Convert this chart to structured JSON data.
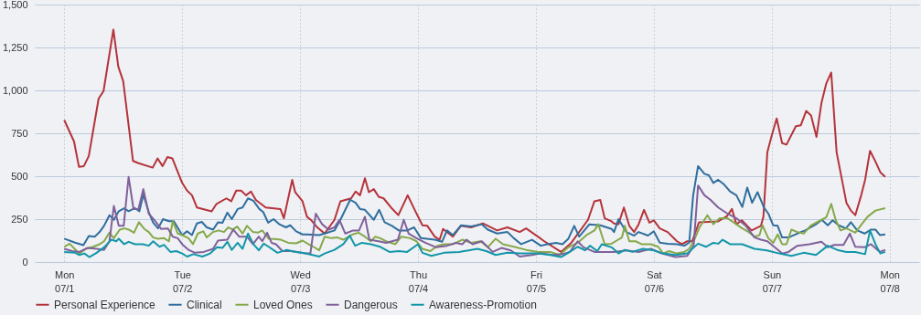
{
  "chart_data": {
    "type": "line",
    "xlim": [
      "--06-30T18:00",
      "--07-08T06:00"
    ],
    "ylim": [
      0,
      1500
    ],
    "xticks": [
      {
        "value": "--07-01",
        "label": "Mon\n07/1"
      },
      {
        "value": "--07-02",
        "label": "Tue\n07/2"
      },
      {
        "value": "--07-03",
        "label": "Wed\n07/3"
      },
      {
        "value": "--07-04",
        "label": "Thu\n07/4"
      },
      {
        "value": "--07-05",
        "label": "Fri\n07/5"
      },
      {
        "value": "--07-06",
        "label": "Sat\n07/6"
      },
      {
        "value": "--07-07",
        "label": "Sun\n07/7"
      },
      {
        "value": "--07-08",
        "label": "Mon\n07/8"
      }
    ],
    "yticks": [
      0,
      250,
      500,
      750,
      {
        "value": 1000,
        "label": "1,000"
      },
      {
        "value": 1250,
        "label": "1,250"
      },
      {
        "value": 1500,
        "label": "1,500"
      }
    ],
    "grid": true,
    "legend": "bottom",
    "line_style": "solid",
    "series": [
      {
        "name": "Personal Experience",
        "color": "#b5333b",
        "x": [
          "--07-01T00:00",
          "--07-01T02:00",
          "--07-01T03:00",
          "--07-01T04:00",
          "--07-01T05:00",
          "--07-01T07:00",
          "--07-01T08:00",
          "--07-01T10:00",
          "--07-01T11:00",
          "--07-01T12:00",
          "--07-01T14:00",
          "--07-01T15:00",
          "--07-01T18:00",
          "--07-01T19:00",
          "--07-01T20:00",
          "--07-01T21:00",
          "--07-01T22:00",
          "--07-02T00:00",
          "--07-02T01:00",
          "--07-02T02:00",
          "--07-02T03:00",
          "--07-02T06:00",
          "--07-02T07:00",
          "--07-02T09:00",
          "--07-02T10:00",
          "--07-02T11:00",
          "--07-02T12:00",
          "--07-02T13:00",
          "--07-02T14:00",
          "--07-02T15:00",
          "--07-02T17:00",
          "--07-02T20:00",
          "--07-02T20:42",
          "--07-02T22:24",
          "--07-02T23:00",
          "--07-03T00:30",
          "--07-03T01:24",
          "--07-03T02:18",
          "--07-03T03:30",
          "--07-03T05:00",
          "--07-03T07:00",
          "--07-03T08:12",
          "--07-03T10:24",
          "--07-03T11:18",
          "--07-03T12:12",
          "--07-03T13:12",
          "--07-03T14:00",
          "--07-03T15:00",
          "--07-03T16:00",
          "--07-03T17:00",
          "--07-03T18:30",
          "--07-03T20:00",
          "--07-03T21:54",
          "--07-03T23:24",
          "--07-04T00:54",
          "--07-04T01:54",
          "--07-04T03:24",
          "--07-04T04:24",
          "--07-04T05:06",
          "--07-04T07:06",
          "--07-04T08:42",
          "--07-04T10:48",
          "--07-04T13:12",
          "--07-04T16:06",
          "--07-04T18:12",
          "--07-04T20:42",
          "--07-04T22:00",
          "--07-05T00:24",
          "--07-05T01:42",
          "--07-05T05:06",
          "--07-05T07:12",
          "--07-05T10:36",
          "--07-05T11:54",
          "--07-05T13:06",
          "--07-05T14:00",
          "--07-05T15:24",
          "--07-05T15:54",
          "--07-05T16:48",
          "--07-05T17:54",
          "--07-05T19:00",
          "--07-05T20:00",
          "--07-05T20:54",
          "--07-05T22:00",
          "--07-05T23:06",
          "--07-06T00:00",
          "--07-06T01:12",
          "--07-06T02:48",
          "--07-06T04:42",
          "--07-06T05:42",
          "--07-06T06:48",
          "--07-06T07:48",
          "--07-06T09:12",
          "--07-06T13:06",
          "--07-06T14:54",
          "--07-06T15:54",
          "--07-06T16:48",
          "--07-06T17:54",
          "--07-06T19:54",
          "--07-06T21:48",
          "--07-06T22:18",
          "--07-06T23:06",
          "--07-07T00:00",
          "--07-07T01:00",
          "--07-07T02:06",
          "--07-07T03:00",
          "--07-07T04:54",
          "--07-07T05:54",
          "--07-07T07:00",
          "--07-07T08:00",
          "--07-07T09:06",
          "--07-07T10:06",
          "--07-07T11:06",
          "--07-07T12:06",
          "--07-07T13:12",
          "--07-07T15:12",
          "--07-07T16:06",
          "--07-07T17:00",
          "--07-07T18:12",
          "--07-07T19:00",
          "--07-07T20:00",
          "--07-07T21:06",
          "--07-07T22:06",
          "--07-07T23:06"
        ],
        "values": [
          827,
          702,
          554,
          559,
          618,
          952,
          996,
          1354,
          1139,
          1054,
          589,
          577,
          550,
          604,
          559,
          612,
          604,
          461,
          416,
          389,
          318,
          295,
          339,
          371,
          354,
          416,
          416,
          389,
          411,
          362,
          318,
          309,
          255,
          479,
          407,
          354,
          264,
          243,
          202,
          166,
          246,
          354,
          371,
          411,
          389,
          488,
          407,
          425,
          380,
          371,
          318,
          273,
          389,
          300,
          214,
          211,
          148,
          130,
          193,
          148,
          211,
          202,
          225,
          184,
          202,
          175,
          196,
          148,
          121,
          59,
          112,
          246,
          354,
          362,
          255,
          237,
          225,
          220,
          318,
          211,
          175,
          220,
          304,
          229,
          243,
          196,
          175,
          121,
          104,
          121,
          121,
          232,
          237,
          268,
          309,
          220,
          243,
          184,
          211,
          264,
          639,
          738,
          836,
          693,
          684,
          791,
          796,
          880,
          854,
          729,
          925,
          1041,
          1104,
          639,
          345,
          300,
          273,
          389,
          479,
          648,
          586,
          523,
          496
        ]
      },
      {
        "name": "Clinical",
        "color": "#2f6e9e",
        "x": [
          "--07-01T00:00",
          "--07-01T02:12",
          "--07-01T03:54",
          "--07-01T05:00",
          "--07-01T06:12",
          "--07-01T07:12",
          "--07-01T08:06",
          "--07-01T09:12",
          "--07-01T10:06",
          "--07-01T11:06",
          "--07-01T12:12",
          "--07-01T13:06",
          "--07-01T14:24",
          "--07-01T15:18",
          "--07-01T16:06",
          "--07-01T17:12",
          "--07-01T18:06",
          "--07-01T19:06",
          "--07-01T20:06",
          "--07-01T21:18",
          "--07-01T22:18",
          "--07-02T00:00",
          "--07-02T01:00",
          "--07-02T02:00",
          "--07-02T03:00",
          "--07-02T04:00",
          "--07-02T05:00",
          "--07-02T06:18",
          "--07-02T07:18",
          "--07-02T08:12",
          "--07-02T09:12",
          "--07-02T10:06",
          "--07-02T11:18",
          "--07-02T12:18",
          "--07-02T13:24",
          "--07-02T14:30",
          "--07-02T15:42",
          "--07-02T16:30",
          "--07-02T17:30",
          "--07-02T18:36",
          "--07-02T19:48",
          "--07-02T21:06",
          "--07-02T22:00",
          "--07-02T23:12",
          "--07-03T00:30",
          "--07-03T01:24",
          "--07-03T03:54",
          "--07-03T05:00",
          "--07-03T07:00",
          "--07-03T08:12",
          "--07-03T10:12",
          "--07-03T11:18",
          "--07-03T12:12",
          "--07-03T13:12",
          "--07-03T15:00",
          "--07-03T16:06",
          "--07-03T17:12",
          "--07-03T18:42",
          "--07-03T20:06",
          "--07-03T21:48",
          "--07-03T23:12",
          "--07-04T00:36",
          "--07-04T03:24",
          "--07-04T04:54",
          "--07-04T05:54",
          "--07-04T07:06",
          "--07-04T08:48",
          "--07-04T10:48",
          "--07-04T13:00",
          "--07-04T14:12",
          "--07-04T16:06",
          "--07-04T18:12",
          "--07-04T19:30",
          "--07-04T21:00",
          "--07-04T23:12",
          "--07-05T01:00",
          "--07-05T02:18",
          "--07-05T04:06",
          "--07-05T05:24",
          "--07-05T06:36",
          "--07-05T07:48",
          "--07-05T08:48",
          "--07-05T10:54",
          "--07-05T13:06",
          "--07-05T15:24",
          "--07-05T15:54",
          "--07-05T16:48",
          "--07-05T18:24",
          "--07-05T20:00",
          "--07-05T20:54",
          "--07-05T22:48",
          "--07-06T00:00",
          "--07-06T01:12",
          "--07-06T02:48",
          "--07-06T04:42",
          "--07-06T06:12",
          "--07-06T07:12",
          "--07-06T08:00",
          "--07-06T09:00",
          "--07-06T10:18",
          "--07-06T11:12",
          "--07-06T12:06",
          "--07-06T13:06",
          "--07-06T14:18",
          "--07-06T15:30",
          "--07-06T16:48",
          "--07-06T18:00",
          "--07-06T19:00",
          "--07-06T20:00",
          "--07-06T21:06",
          "--07-06T22:24",
          "--07-06T23:18",
          "--07-07T00:18",
          "--07-07T01:12",
          "--07-07T02:06",
          "--07-07T03:24",
          "--07-07T05:12",
          "--07-07T06:48",
          "--07-07T09:00",
          "--07-07T10:12",
          "--07-07T11:24",
          "--07-07T12:24",
          "--07-07T13:36",
          "--07-07T15:06",
          "--07-07T16:06",
          "--07-07T17:24",
          "--07-07T18:54",
          "--07-07T20:12",
          "--07-07T21:06",
          "--07-07T22:00",
          "--07-07T23:06"
        ],
        "values": [
          136,
          113,
          98,
          152,
          148,
          175,
          211,
          273,
          246,
          296,
          313,
          296,
          314,
          296,
          393,
          291,
          229,
          196,
          250,
          238,
          238,
          157,
          179,
          157,
          225,
          234,
          202,
          189,
          232,
          229,
          288,
          250,
          309,
          318,
          371,
          357,
          309,
          291,
          229,
          250,
          220,
          202,
          214,
          179,
          161,
          161,
          157,
          166,
          184,
          246,
          363,
          345,
          309,
          304,
          246,
          304,
          232,
          211,
          184,
          184,
          202,
          139,
          130,
          118,
          184,
          157,
          214,
          207,
          220,
          189,
          166,
          175,
          139,
          104,
          130,
          95,
          104,
          112,
          104,
          136,
          211,
          148,
          220,
          214,
          193,
          175,
          250,
          175,
          154,
          175,
          154,
          179,
          113,
          107,
          104,
          95,
          113,
          389,
          559,
          514,
          505,
          461,
          479,
          452,
          411,
          389,
          321,
          434,
          345,
          407,
          318,
          282,
          214,
          211,
          143,
          143,
          166,
          184,
          220,
          246,
          214,
          243,
          214,
          196,
          232,
          184,
          166,
          189,
          189,
          157,
          161
        ]
      },
      {
        "name": "Loved Ones",
        "color": "#86a84a",
        "x": [
          "--07-01T00:00",
          "--07-01T01:06",
          "--07-01T02:06",
          "--07-01T03:06",
          "--07-01T04:24",
          "--07-01T05:54",
          "--07-01T07:12",
          "--07-01T08:06",
          "--07-01T09:12",
          "--07-01T10:06",
          "--07-01T11:18",
          "--07-01T12:18",
          "--07-01T13:06",
          "--07-01T14:12",
          "--07-01T15:12",
          "--07-01T16:18",
          "--07-01T17:12",
          "--07-01T18:06",
          "--07-01T19:06",
          "--07-01T20:18",
          "--07-01T21:18",
          "--07-01T22:06",
          "--07-01T23:06",
          "--07-02T00:00",
          "--07-02T01:18",
          "--07-02T02:12",
          "--07-02T03:12",
          "--07-02T04:18",
          "--07-02T05:00",
          "--07-02T06:18",
          "--07-02T07:24",
          "--07-02T08:30",
          "--07-02T09:24",
          "--07-02T10:18",
          "--07-02T11:12",
          "--07-02T12:18",
          "--07-02T13:12",
          "--07-02T14:24",
          "--07-02T15:24",
          "--07-02T16:18",
          "--07-02T17:36",
          "--07-02T18:48",
          "--07-02T20:06",
          "--07-02T21:36",
          "--07-02T23:12",
          "--07-03T00:30",
          "--07-03T01:42",
          "--07-03T02:42",
          "--07-03T03:54",
          "--07-03T05:00",
          "--07-03T06:24",
          "--07-03T07:36",
          "--07-03T08:48",
          "--07-03T10:42",
          "--07-03T11:54",
          "--07-03T13:12",
          "--07-03T14:24",
          "--07-03T15:18",
          "--07-03T16:18",
          "--07-03T17:30",
          "--07-03T19:24",
          "--07-03T20:36",
          "--07-03T22:24",
          "--07-03T23:42",
          "--07-04T00:54",
          "--07-04T02:30",
          "--07-04T04:00",
          "--07-04T05:18",
          "--07-04T07:06",
          "--07-04T09:00",
          "--07-04T10:48",
          "--07-04T12:42",
          "--07-04T14:12",
          "--07-04T15:48",
          "--07-04T17:18",
          "--07-04T19:30",
          "--07-04T22:00",
          "--07-05T00:24",
          "--07-05T02:54",
          "--07-05T04:48",
          "--07-05T06:36",
          "--07-05T08:30",
          "--07-05T10:18",
          "--07-05T11:54",
          "--07-05T12:42",
          "--07-05T14:00",
          "--07-05T15:24",
          "--07-05T16:12",
          "--07-05T17:30",
          "--07-05T18:06",
          "--07-05T19:00",
          "--07-05T20:18",
          "--07-05T21:30",
          "--07-05T23:24",
          "--07-06T00:54",
          "--07-06T01:54",
          "--07-06T03:06",
          "--07-06T04:42",
          "--07-06T06:12",
          "--07-06T07:12",
          "--07-06T08:06",
          "--07-06T09:18",
          "--07-06T10:54",
          "--07-06T12:06",
          "--07-06T13:24",
          "--07-06T15:00",
          "--07-06T16:12",
          "--07-06T18:00",
          "--07-06T19:18",
          "--07-06T20:30",
          "--07-06T21:30",
          "--07-06T22:06",
          "--07-06T23:18",
          "--07-07T00:18",
          "--07-07T01:12",
          "--07-07T02:06",
          "--07-07T03:00",
          "--07-07T04:00",
          "--07-07T05:12",
          "--07-07T06:30",
          "--07-07T08:00",
          "--07-07T09:36",
          "--07-07T11:06",
          "--07-07T12:06",
          "--07-07T13:00",
          "--07-07T14:00",
          "--07-07T15:12",
          "--07-07T17:00",
          "--07-07T18:18",
          "--07-07T19:30",
          "--07-07T21:06",
          "--07-07T23:06"
        ],
        "values": [
          89,
          107,
          77,
          50,
          77,
          89,
          104,
          121,
          171,
          139,
          189,
          196,
          189,
          171,
          232,
          193,
          175,
          143,
          136,
          139,
          121,
          238,
          166,
          157,
          139,
          104,
          166,
          179,
          143,
          175,
          184,
          175,
          202,
          189,
          207,
          166,
          211,
          175,
          171,
          184,
          136,
          134,
          130,
          112,
          109,
          125,
          104,
          89,
          68,
          148,
          139,
          143,
          130,
          161,
          171,
          148,
          121,
          148,
          139,
          121,
          104,
          148,
          139,
          121,
          77,
          64,
          95,
          104,
          104,
          130,
          112,
          121,
          86,
          136,
          104,
          89,
          71,
          59,
          59,
          41,
          86,
          112,
          157,
          184,
          220,
          104,
          107,
          121,
          143,
          211,
          121,
          121,
          104,
          104,
          89,
          50,
          64,
          50,
          59,
          77,
          121,
          202,
          273,
          220,
          255,
          255,
          232,
          196,
          175,
          148,
          157,
          214,
          139,
          112,
          161,
          104,
          104,
          189,
          175,
          166,
          214,
          238,
          261,
          339,
          246,
          184,
          196,
          171,
          220,
          264,
          300,
          314
        ]
      },
      {
        "name": "Dangerous",
        "color": "#80609a",
        "x": [
          "--07-01T00:00",
          "--07-01T01:36",
          "--07-01T03:06",
          "--07-01T04:42",
          "--07-01T06:36",
          "--07-01T08:06",
          "--07-01T09:12",
          "--07-01T10:06",
          "--07-01T11:06",
          "--07-01T12:06",
          "--07-01T13:06",
          "--07-01T14:06",
          "--07-01T15:06",
          "--07-01T16:06",
          "--07-01T17:12",
          "--07-01T18:24",
          "--07-01T19:42",
          "--07-01T21:06",
          "--07-01T22:06",
          "--07-01T23:06",
          "--07-02T00:00",
          "--07-02T01:18",
          "--07-02T02:36",
          "--07-02T04:24",
          "--07-02T06:18",
          "--07-02T07:18",
          "--07-02T09:12",
          "--07-02T10:24",
          "--07-02T11:36",
          "--07-02T13:12",
          "--07-02T14:24",
          "--07-02T15:36",
          "--07-02T16:18",
          "--07-02T17:18",
          "--07-02T18:12",
          "--07-02T19:06",
          "--07-02T20:24",
          "--07-02T22:00",
          "--07-02T23:30",
          "--07-03T01:06",
          "--07-03T02:06",
          "--07-03T03:12",
          "--07-03T04:30",
          "--07-03T05:48",
          "--07-03T07:00",
          "--07-03T08:00",
          "--07-03T09:12",
          "--07-03T10:48",
          "--07-03T12:00",
          "--07-03T13:12",
          "--07-03T14:06",
          "--07-03T16:00",
          "--07-03T17:30",
          "--07-03T18:42",
          "--07-03T19:54",
          "--07-03T21:06",
          "--07-03T22:06",
          "--07-03T23:42",
          "--07-04T01:30",
          "--07-04T03:42",
          "--07-04T05:54",
          "--07-04T07:42",
          "--07-04T09:00",
          "--07-04T09:54",
          "--07-04T11:06",
          "--07-04T13:00",
          "--07-04T15:12",
          "--07-04T17:00",
          "--07-04T18:54",
          "--07-04T20:42",
          "--07-04T23:12",
          "--07-05T01:00",
          "--07-05T03:30",
          "--07-05T05:24",
          "--07-05T06:54",
          "--07-05T08:30",
          "--07-05T09:42",
          "--07-05T11:54",
          "--07-05T14:00",
          "--07-05T15:54",
          "--07-05T18:24",
          "--07-05T20:54",
          "--07-05T23:24",
          "--07-06T01:36",
          "--07-06T04:24",
          "--07-06T06:48",
          "--07-06T08:06",
          "--07-06T09:00",
          "--07-06T10:18",
          "--07-06T11:30",
          "--07-06T13:06",
          "--07-06T15:00",
          "--07-06T16:48",
          "--07-06T18:42",
          "--07-06T20:30",
          "--07-06T21:48",
          "--07-06T23:06",
          "--07-07T00:36",
          "--07-07T02:06",
          "--07-07T03:24",
          "--07-07T05:12",
          "--07-07T07:42",
          "--07-07T10:06",
          "--07-07T11:24",
          "--07-07T12:42",
          "--07-07T14:36",
          "--07-07T15:54",
          "--07-07T17:00",
          "--07-07T18:54",
          "--07-07T20:12",
          "--07-07T22:00",
          "--07-07T23:06"
        ],
        "values": [
          77,
          64,
          59,
          82,
          77,
          71,
          121,
          327,
          211,
          211,
          496,
          309,
          309,
          425,
          282,
          243,
          193,
          196,
          148,
          139,
          104,
          71,
          54,
          59,
          77,
          125,
          130,
          189,
          148,
          148,
          104,
          148,
          121,
          171,
          112,
          104,
          64,
          64,
          59,
          50,
          50,
          282,
          220,
          189,
          202,
          246,
          166,
          184,
          184,
          264,
          130,
          121,
          112,
          121,
          130,
          246,
          166,
          139,
          112,
          86,
          95,
          112,
          104,
          130,
          104,
          121,
          59,
          82,
          68,
          32,
          41,
          50,
          41,
          46,
          59,
          121,
          86,
          59,
          59,
          59,
          68,
          59,
          77,
          50,
          29,
          36,
          95,
          446,
          389,
          363,
          318,
          282,
          255,
          211,
          143,
          130,
          121,
          86,
          50,
          59,
          95,
          104,
          118,
          86,
          100,
          100,
          166,
          89,
          86,
          104,
          59,
          71
        ]
      },
      {
        "name": "Awareness-Promotion",
        "color": "#1296a8",
        "x": [
          "--07-01T00:00",
          "--07-01T02:12",
          "--07-01T03:06",
          "--07-01T04:06",
          "--07-01T05:06",
          "--07-01T06:36",
          "--07-01T08:06",
          "--07-01T09:36",
          "--07-01T10:36",
          "--07-01T11:06",
          "--07-01T12:12",
          "--07-01T13:06",
          "--07-01T14:24",
          "--07-01T16:00",
          "--07-01T17:12",
          "--07-01T18:06",
          "--07-01T19:24",
          "--07-01T20:18",
          "--07-01T21:36",
          "--07-01T22:48",
          "--07-02T00:00",
          "--07-02T01:00",
          "--07-02T02:18",
          "--07-02T04:06",
          "--07-02T05:42",
          "--07-02T07:06",
          "--07-02T08:12",
          "--07-02T09:12",
          "--07-02T10:06",
          "--07-02T11:18",
          "--07-02T12:18",
          "--07-02T13:24",
          "--07-02T14:30",
          "--07-02T15:36",
          "--07-02T16:36",
          "--07-02T17:36",
          "--07-02T19:24",
          "--07-02T21:18",
          "--07-02T23:12",
          "--07-03T01:06",
          "--07-03T03:54",
          "--07-03T05:00",
          "--07-03T07:00",
          "--07-03T08:48",
          "--07-03T10:06",
          "--07-03T11:12",
          "--07-03T12:36",
          "--07-03T14:24",
          "--07-03T16:18",
          "--07-03T18:12",
          "--07-03T20:06",
          "--07-03T21:48",
          "--07-04T00:00",
          "--07-04T00:54",
          "--07-04T02:42",
          "--07-04T05:18",
          "--07-04T08:24",
          "--07-04T12:06",
          "--07-04T13:54",
          "--07-04T15:48",
          "--07-04T18:12",
          "--07-04T20:42",
          "--07-05T00:24",
          "--07-05T02:54",
          "--07-05T05:06",
          "--07-05T06:36",
          "--07-05T08:30",
          "--07-05T10:00",
          "--07-05T11:00",
          "--07-05T12:30",
          "--07-05T13:24",
          "--07-05T15:24",
          "--07-05T16:48",
          "--07-05T18:06",
          "--07-05T19:36",
          "--07-05T21:48",
          "--07-06T00:00",
          "--07-06T01:54",
          "--07-06T04:24",
          "--07-06T06:48",
          "--07-06T09:00",
          "--07-06T10:36",
          "--07-06T12:06",
          "--07-06T13:06",
          "--07-06T14:00",
          "--07-06T15:30",
          "--07-06T18:00",
          "--07-06T20:30",
          "--07-06T23:00",
          "--07-07T01:30",
          "--07-07T04:00",
          "--07-07T06:30",
          "--07-07T09:00",
          "--07-07T11:24",
          "--07-07T13:18",
          "--07-07T15:12",
          "--07-07T17:00",
          "--07-07T19:00",
          "--07-07T20:00",
          "--07-07T21:06",
          "--07-07T22:06",
          "--07-07T23:06"
        ],
        "values": [
          59,
          54,
          41,
          50,
          29,
          54,
          86,
          130,
          121,
          136,
          104,
          118,
          104,
          104,
          95,
          121,
          89,
          100,
          59,
          64,
          50,
          32,
          46,
          32,
          50,
          86,
          82,
          118,
          71,
          112,
          77,
          166,
          104,
          68,
          107,
          89,
          54,
          71,
          59,
          50,
          32,
          50,
          71,
          104,
          154,
          95,
          112,
          104,
          89,
          59,
          64,
          59,
          104,
          54,
          36,
          54,
          59,
          77,
          64,
          41,
          54,
          50,
          50,
          41,
          29,
          54,
          89,
          68,
          95,
          64,
          104,
          86,
          50,
          71,
          59,
          77,
          68,
          50,
          41,
          50,
          107,
          89,
          112,
          107,
          130,
          104,
          104,
          77,
          68,
          50,
          36,
          54,
          41,
          95,
          71,
          59,
          59,
          46,
          184,
          104,
          50,
          59
        ]
      }
    ]
  }
}
